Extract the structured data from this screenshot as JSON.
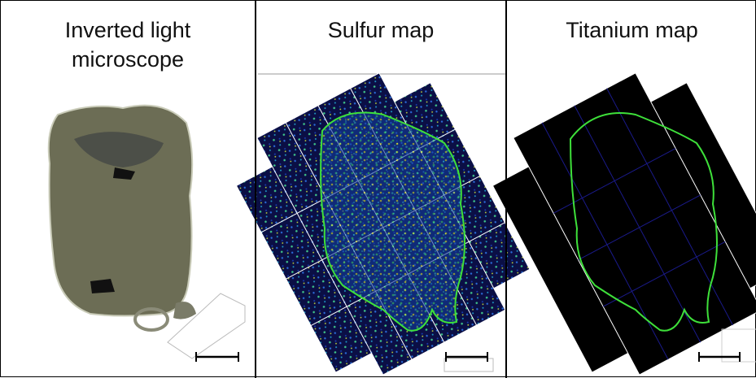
{
  "panels": [
    {
      "title": "Inverted light microscope"
    },
    {
      "title": "Sulfur map"
    },
    {
      "title": "Titanium map"
    }
  ]
}
